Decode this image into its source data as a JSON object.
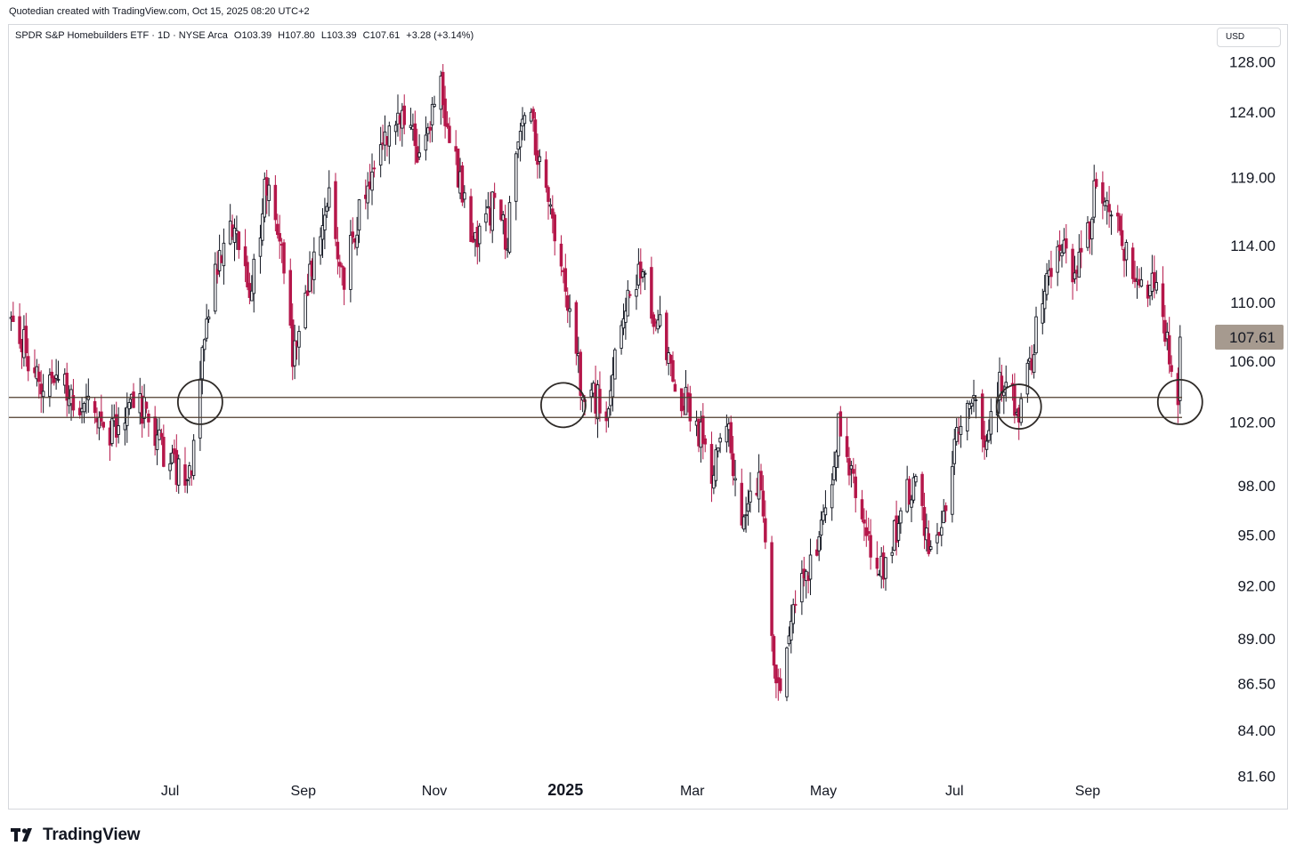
{
  "header": {
    "credit": "Quotedian created with TradingView.com, Oct 15, 2025 08:20 UTC+2"
  },
  "legend": {
    "symbol": "SPDR S&P Homebuilders ETF · 1D · NYSE Arca",
    "open": "O103.39",
    "high": "H107.80",
    "low": "L103.39",
    "close": "C107.61",
    "change": "+3.28 (+3.14%)"
  },
  "currency_button": "USD",
  "footer": {
    "brand": "TradingView"
  },
  "colors": {
    "up": "#131722",
    "down": "#b5174a",
    "wick": "#4a4a4a",
    "support": "#4e3c2c",
    "last_label_bg": "#a69a8f",
    "grid": "#ffffff"
  },
  "chart_data": {
    "type": "candlestick",
    "title": "SPDR S&P Homebuilders ETF · 1D · NYSE Arca",
    "y_axis": {
      "scale": "log",
      "ticks": [
        "128.00",
        "124.00",
        "119.00",
        "114.00",
        "110.00",
        "106.00",
        "102.00",
        "98.00",
        "95.00",
        "92.00",
        "89.00",
        "86.50",
        "84.00",
        "81.60"
      ],
      "range": [
        80.0,
        131.0
      ]
    },
    "x_axis": {
      "ticks": [
        {
          "label": "Jul",
          "date": "2024-07-01",
          "bold": false
        },
        {
          "label": "Sep",
          "date": "2024-09-01",
          "bold": false
        },
        {
          "label": "Nov",
          "date": "2024-11-01",
          "bold": false
        },
        {
          "label": "2025",
          "date": "2025-01-01",
          "bold": true
        },
        {
          "label": "Mar",
          "date": "2025-03-01",
          "bold": false
        },
        {
          "label": "May",
          "date": "2025-05-01",
          "bold": false
        },
        {
          "label": "Jul",
          "date": "2025-07-01",
          "bold": false
        },
        {
          "label": "Sep",
          "date": "2025-09-01",
          "bold": false
        }
      ],
      "range": [
        "2024-04-17",
        "2025-10-29"
      ]
    },
    "last_price": {
      "value": 107.61,
      "label": "107.61"
    },
    "support_band": {
      "lower": 102.3,
      "upper": 103.6
    },
    "touch_circles": [
      {
        "date": "2024-07-15",
        "price": 103.3
      },
      {
        "date": "2024-12-31",
        "price": 103.1
      },
      {
        "date": "2025-07-31",
        "price": 103.0
      },
      {
        "date": "2025-10-14",
        "price": 103.3
      }
    ],
    "price_path": [
      [
        "2024-04-18",
        108.8
      ],
      [
        "2024-05-01",
        105.0
      ],
      [
        "2024-05-20",
        103.6
      ],
      [
        "2024-06-03",
        101.2
      ],
      [
        "2024-06-14",
        104.0
      ],
      [
        "2024-06-27",
        100.5
      ],
      [
        "2024-07-08",
        98.2
      ],
      [
        "2024-07-12",
        99.8
      ],
      [
        "2024-07-16",
        106.5
      ],
      [
        "2024-07-22",
        112.0
      ],
      [
        "2024-07-31",
        115.5
      ],
      [
        "2024-08-07",
        111.0
      ],
      [
        "2024-08-16",
        119.5
      ],
      [
        "2024-08-21",
        114.5
      ],
      [
        "2024-08-27",
        106.5
      ],
      [
        "2024-09-04",
        111.5
      ],
      [
        "2024-09-13",
        117.0
      ],
      [
        "2024-09-20",
        111.5
      ],
      [
        "2024-09-27",
        116.5
      ],
      [
        "2024-10-07",
        122.0
      ],
      [
        "2024-10-16",
        124.0
      ],
      [
        "2024-10-25",
        120.5
      ],
      [
        "2024-11-04",
        125.5
      ],
      [
        "2024-11-12",
        119.0
      ],
      [
        "2024-11-20",
        114.0
      ],
      [
        "2024-11-29",
        117.0
      ],
      [
        "2024-12-05",
        114.5
      ],
      [
        "2024-12-09",
        120.0
      ],
      [
        "2024-12-13",
        125.0
      ],
      [
        "2024-12-20",
        120.5
      ],
      [
        "2024-12-31",
        112.0
      ],
      [
        "2025-01-08",
        104.5
      ],
      [
        "2025-01-14",
        104.0
      ],
      [
        "2025-01-20",
        102.0
      ],
      [
        "2025-01-28",
        109.5
      ],
      [
        "2025-02-05",
        112.0
      ],
      [
        "2025-02-14",
        108.0
      ],
      [
        "2025-02-21",
        104.5
      ],
      [
        "2025-03-03",
        102.0
      ],
      [
        "2025-03-10",
        98.5
      ],
      [
        "2025-03-17",
        102.0
      ],
      [
        "2025-03-24",
        96.0
      ],
      [
        "2025-04-02",
        98.5
      ],
      [
        "2025-04-07",
        89.5
      ],
      [
        "2025-04-10",
        86.0
      ],
      [
        "2025-04-16",
        90.5
      ],
      [
        "2025-04-23",
        92.5
      ],
      [
        "2025-05-02",
        96.5
      ],
      [
        "2025-05-08",
        101.5
      ],
      [
        "2025-05-15",
        98.5
      ],
      [
        "2025-05-23",
        94.5
      ],
      [
        "2025-05-30",
        93.0
      ],
      [
        "2025-06-06",
        96.5
      ],
      [
        "2025-06-13",
        98.5
      ],
      [
        "2025-06-20",
        94.0
      ],
      [
        "2025-06-27",
        97.5
      ],
      [
        "2025-07-03",
        101.5
      ],
      [
        "2025-07-10",
        104.0
      ],
      [
        "2025-07-16",
        101.0
      ],
      [
        "2025-07-22",
        105.0
      ],
      [
        "2025-07-31",
        103.0
      ],
      [
        "2025-08-06",
        106.5
      ],
      [
        "2025-08-12",
        110.5
      ],
      [
        "2025-08-18",
        114.5
      ],
      [
        "2025-08-25",
        112.5
      ],
      [
        "2025-09-02",
        115.0
      ],
      [
        "2025-09-05",
        119.0
      ],
      [
        "2025-09-12",
        117.0
      ],
      [
        "2025-09-19",
        113.0
      ],
      [
        "2025-09-26",
        110.5
      ],
      [
        "2025-10-02",
        112.0
      ],
      [
        "2025-10-07",
        107.5
      ],
      [
        "2025-10-13",
        104.0
      ],
      [
        "2025-10-14",
        107.61
      ]
    ]
  }
}
